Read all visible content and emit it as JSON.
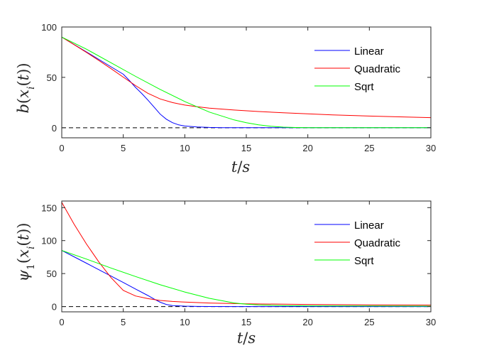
{
  "chart_data": [
    {
      "type": "line",
      "xlabel": "t/s",
      "ylabel": "b(x_i(t))",
      "xlim": [
        0,
        30
      ],
      "ylim": [
        -10,
        100
      ],
      "xticks": [
        "0",
        "5",
        "10",
        "15",
        "20",
        "25",
        "30"
      ],
      "yticks": [
        "0",
        "50",
        "100"
      ],
      "reference_line": {
        "y": 0,
        "style": "dashed",
        "color": "#000000"
      },
      "legend": {
        "position": "top-right",
        "entries": [
          "Linear",
          "Quadratic",
          "Sqrt"
        ]
      },
      "series": [
        {
          "name": "Linear",
          "color": "#0000ff",
          "x": [
            0,
            1,
            2,
            3,
            4,
            5,
            5.5,
            6,
            6.5,
            7,
            7.5,
            8,
            8.5,
            9,
            9.5,
            10,
            11,
            12,
            13,
            15,
            20,
            25,
            30
          ],
          "y": [
            90,
            82.6,
            75.3,
            67.9,
            60.5,
            53.1,
            46.8,
            40,
            34,
            27.5,
            20.5,
            13.5,
            8.5,
            5,
            2.8,
            1.7,
            0.8,
            0.3,
            0.1,
            0,
            0,
            0,
            0
          ]
        },
        {
          "name": "Quadratic",
          "color": "#ff0000",
          "x": [
            0,
            1,
            2,
            3,
            4,
            5,
            6,
            7,
            8,
            9,
            10,
            11,
            12,
            14,
            16,
            18,
            20,
            22,
            25,
            28,
            30
          ],
          "y": [
            90,
            82.5,
            74.8,
            66.9,
            58.7,
            50.2,
            41.8,
            34.2,
            28.6,
            25,
            22.5,
            20.8,
            19.5,
            17.6,
            16.1,
            14.9,
            13.8,
            12.8,
            11.6,
            10.6,
            10
          ]
        },
        {
          "name": "Sqrt",
          "color": "#00ff00",
          "x": [
            0,
            2,
            4,
            6,
            8,
            10,
            12,
            14,
            15,
            16,
            17,
            18,
            19,
            20,
            22,
            25,
            30
          ],
          "y": [
            90,
            78,
            64.5,
            51,
            38,
            26,
            15.5,
            7.8,
            5,
            2.9,
            1.5,
            0.6,
            0.2,
            0,
            0,
            0,
            0
          ]
        }
      ]
    },
    {
      "type": "line",
      "xlabel": "t/s",
      "ylabel": "ψ_1(x_i(t))",
      "xlim": [
        0,
        30
      ],
      "ylim": [
        -8,
        160
      ],
      "xticks": [
        "0",
        "5",
        "10",
        "15",
        "20",
        "25",
        "30"
      ],
      "yticks": [
        "0",
        "50",
        "100",
        "150"
      ],
      "reference_line": {
        "y": 0,
        "style": "dashed",
        "color": "#000000"
      },
      "legend": {
        "position": "top-right",
        "entries": [
          "Linear",
          "Quadratic",
          "Sqrt"
        ]
      },
      "series": [
        {
          "name": "Linear",
          "color": "#0000ff",
          "x": [
            0,
            1,
            2,
            3,
            4,
            5,
            6,
            7,
            7.5,
            8,
            8.5,
            9,
            10,
            11,
            12,
            14,
            16,
            20,
            25,
            30
          ],
          "y": [
            85,
            75.5,
            65.8,
            56,
            46.3,
            36.5,
            26.6,
            16.8,
            11.5,
            6.5,
            3.2,
            1.5,
            0.6,
            0.2,
            0.1,
            0,
            0,
            0,
            0,
            0
          ]
        },
        {
          "name": "Quadratic",
          "color": "#ff0000",
          "x": [
            0,
            1,
            2,
            3,
            4,
            5,
            6,
            7,
            8,
            9,
            10,
            12,
            15,
            20,
            25,
            30
          ],
          "y": [
            158,
            125,
            95,
            68,
            44,
            24.5,
            16,
            12,
            9.2,
            7.7,
            6.8,
            5.4,
            4.2,
            3.2,
            2.6,
            2.2
          ]
        },
        {
          "name": "Sqrt",
          "color": "#00ff00",
          "x": [
            0,
            2,
            4,
            6,
            8,
            10,
            12,
            14,
            15,
            16,
            18,
            20,
            25,
            30
          ],
          "y": [
            85,
            72,
            58.5,
            45.5,
            33,
            22,
            12.5,
            5.5,
            3.5,
            2.4,
            1.5,
            1,
            0.8,
            0.6
          ]
        }
      ]
    }
  ]
}
